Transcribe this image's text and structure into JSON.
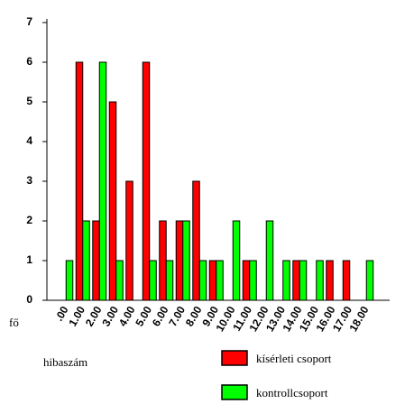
{
  "chart_data": {
    "type": "bar",
    "y_label": "fő",
    "x_label": "hibaszám",
    "categories": [
      ".00",
      "1.00",
      "2.00",
      "3.00",
      "4.00",
      "5.00",
      "6.00",
      "7.00",
      "8.00",
      "9.00",
      "10.00",
      "11.00",
      "12.00",
      "13.00",
      "14.00",
      "15.00",
      "16.00",
      "17.00",
      "18.00"
    ],
    "series": [
      {
        "name": "kísérleti csoport",
        "color": "#ff0000",
        "values": [
          0,
          6,
          2,
          5,
          3,
          6,
          2,
          2,
          3,
          1,
          0,
          1,
          0,
          0,
          1,
          0,
          1,
          1,
          0
        ]
      },
      {
        "name": "kontrollcsoport",
        "color": "#00ff00",
        "values": [
          1,
          2,
          6,
          1,
          0,
          1,
          1,
          2,
          1,
          1,
          2,
          1,
          2,
          1,
          1,
          1,
          0,
          0,
          1
        ]
      }
    ],
    "ylim": [
      0,
      7
    ],
    "yticks": [
      0,
      1,
      2,
      3,
      4,
      5,
      6,
      7
    ],
    "grid": false
  }
}
